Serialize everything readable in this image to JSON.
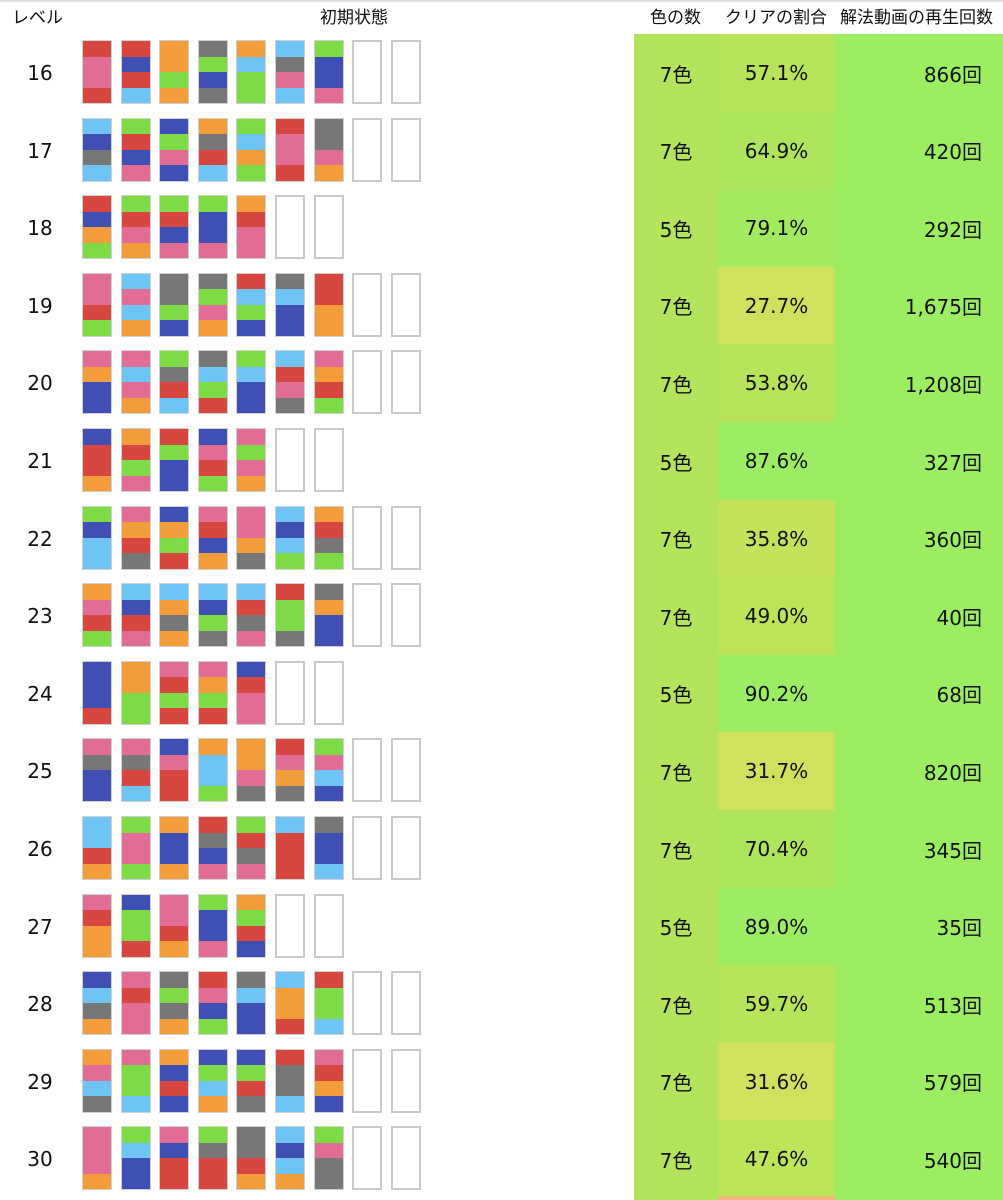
{
  "header": {
    "level": "レベル",
    "initial_state": "初期状態",
    "colors": "色の数",
    "clear_rate": "クリアの割合",
    "solution_views": "解法動画の再生回数"
  },
  "color_map": {
    "R": "#d8473f",
    "P": "#e16c95",
    "O": "#f39c3a",
    "G": "#777777",
    "N": "#7ddb46",
    "B": "#3f4fb3",
    "L": "#6ec4f5"
  },
  "cell_colors": {
    "colors_col": "#b3e45c",
    "videos_col": "#9ded63",
    "clear_scale": [
      {
        "min": 85,
        "color": "#9ced63"
      },
      {
        "min": 75,
        "color": "#a3ea60"
      },
      {
        "min": 60,
        "color": "#afe55d"
      },
      {
        "min": 52,
        "color": "#b7e45a"
      },
      {
        "min": 45,
        "color": "#bde55a"
      },
      {
        "min": 33,
        "color": "#c4e35a"
      },
      {
        "min": 0,
        "color": "#d0e15d"
      }
    ],
    "peek_row_clear": "#f3b87f"
  },
  "rows": [
    {
      "level": "16",
      "tubes": [
        "RPPR",
        "RBRL",
        "OONO",
        "GNBG",
        "OLNN",
        "LGPL",
        "NBBP",
        "",
        ""
      ],
      "colors": "7色",
      "clear": "57.1%",
      "videos": "866回"
    },
    {
      "level": "17",
      "tubes": [
        "LBGL",
        "NRBP",
        "BNPB",
        "OGRL",
        "NLON",
        "RPPR",
        "GGPO",
        "",
        ""
      ],
      "colors": "7色",
      "clear": "64.9%",
      "videos": "420回"
    },
    {
      "level": "18",
      "tubes": [
        "RBON",
        "NRPO",
        "NRBP",
        "NBBP",
        "ORPP",
        "",
        ""
      ],
      "colors": "5色",
      "clear": "79.1%",
      "videos": "292回"
    },
    {
      "level": "19",
      "tubes": [
        "PPRN",
        "LPLO",
        "GGNB",
        "GNPO",
        "RLNB",
        "GLBB",
        "RROO",
        "",
        ""
      ],
      "colors": "7色",
      "clear": "27.7%",
      "videos": "1,675回"
    },
    {
      "level": "20",
      "tubes": [
        "POBB",
        "PLPO",
        "NGRL",
        "GLNR",
        "NLBB",
        "LRPG",
        "PORN",
        "",
        ""
      ],
      "colors": "7色",
      "clear": "53.8%",
      "videos": "1,208回"
    },
    {
      "level": "21",
      "tubes": [
        "BRRO",
        "ORNP",
        "RNBB",
        "BPRN",
        "PNPO",
        "",
        ""
      ],
      "colors": "5色",
      "clear": "87.6%",
      "videos": "327回"
    },
    {
      "level": "22",
      "tubes": [
        "NBLL",
        "PORG",
        "BONR",
        "PRBO",
        "PPOG",
        "LBLN",
        "ORGN",
        "",
        ""
      ],
      "colors": "7色",
      "clear": "35.8%",
      "videos": "360回"
    },
    {
      "level": "23",
      "tubes": [
        "OPRN",
        "LBRP",
        "LOGO",
        "LBNG",
        "LRGP",
        "RNNG",
        "GOBB",
        "",
        ""
      ],
      "colors": "7色",
      "clear": "49.0%",
      "videos": "40回"
    },
    {
      "level": "24",
      "tubes": [
        "BBBR",
        "OONN",
        "PRNR",
        "PONR",
        "BRPP",
        "",
        ""
      ],
      "colors": "5色",
      "clear": "90.2%",
      "videos": "68回"
    },
    {
      "level": "25",
      "tubes": [
        "PGBB",
        "PGRL",
        "BPRR",
        "OLLN",
        "OOPG",
        "RPOG",
        "NPLB",
        "",
        ""
      ],
      "colors": "7色",
      "clear": "31.7%",
      "videos": "820回"
    },
    {
      "level": "26",
      "tubes": [
        "LLRO",
        "NPPN",
        "OBBO",
        "RGBP",
        "NRGP",
        "LRRR",
        "GBBL",
        "",
        ""
      ],
      "colors": "7色",
      "clear": "70.4%",
      "videos": "345回"
    },
    {
      "level": "27",
      "tubes": [
        "PROO",
        "BNNR",
        "PPRO",
        "NBBP",
        "ONRB",
        "",
        ""
      ],
      "colors": "5色",
      "clear": "89.0%",
      "videos": "35回"
    },
    {
      "level": "28",
      "tubes": [
        "BLGO",
        "PRPP",
        "GNGO",
        "RPBN",
        "GLBB",
        "LOOR",
        "RNNL",
        "",
        ""
      ],
      "colors": "7色",
      "clear": "59.7%",
      "videos": "513回"
    },
    {
      "level": "29",
      "tubes": [
        "OPLG",
        "PNNL",
        "OBRB",
        "BNLO",
        "BNRG",
        "RGGL",
        "PROB",
        "",
        ""
      ],
      "colors": "7色",
      "clear": "31.6%",
      "videos": "579回"
    },
    {
      "level": "30",
      "tubes": [
        "PPPO",
        "NLBB",
        "PBRR",
        "NGRR",
        "GGRO",
        "LBLO",
        "NPGG",
        "",
        ""
      ],
      "colors": "7色",
      "clear": "47.6%",
      "videos": "540回"
    }
  ]
}
